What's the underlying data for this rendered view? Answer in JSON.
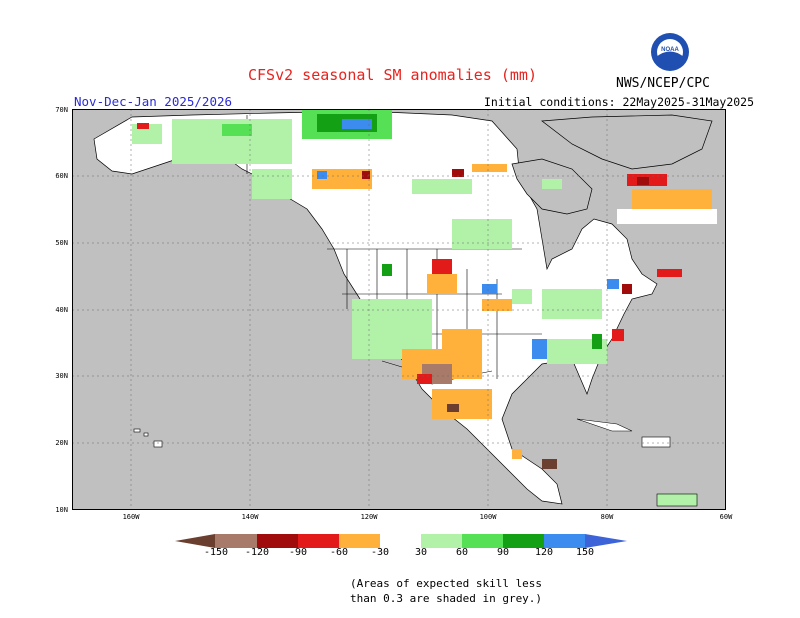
{
  "header": {
    "title": "CFSv2 seasonal SM anomalies (mm)",
    "season": "Nov-Dec-Jan 2025/2026",
    "initial_conditions": "Initial conditions: 22May2025-31May2025",
    "agency": "NWS/NCEP/CPC",
    "logo_text": "NOAA"
  },
  "axes": {
    "lat_labels": [
      "70N",
      "60N",
      "50N",
      "40N",
      "30N",
      "20N",
      "10N"
    ],
    "lon_labels": [
      "160W",
      "140W",
      "120W",
      "100W",
      "80W",
      "60W"
    ]
  },
  "legend": {
    "labels": [
      "-150",
      "-120",
      "-90",
      "-60",
      "-30",
      "30",
      "60",
      "90",
      "120",
      "150"
    ],
    "colors": {
      "lt_m150": "#6b3f2f",
      "m150_m120": "#a87a6a",
      "m120_m90": "#a00c0c",
      "m90_m60": "#e21a1a",
      "m60_m30": "#ff5a1e",
      "m30_0": "#ffb13c",
      "neutral": "#ffffff",
      "p30_60": "#b2f2a8",
      "p60_90": "#55e055",
      "p90_120": "#14a014",
      "p120_150": "#3c8cf0",
      "gt_150": "#3c64d8"
    }
  },
  "colors": {
    "ocean_low_skill": "#c0c0c0",
    "title": "#e8231f",
    "season": "#2b2bd6"
  },
  "note": {
    "line1": "(Areas of expected skill less",
    "line2": "than 0.3 are shaded in grey.)"
  }
}
